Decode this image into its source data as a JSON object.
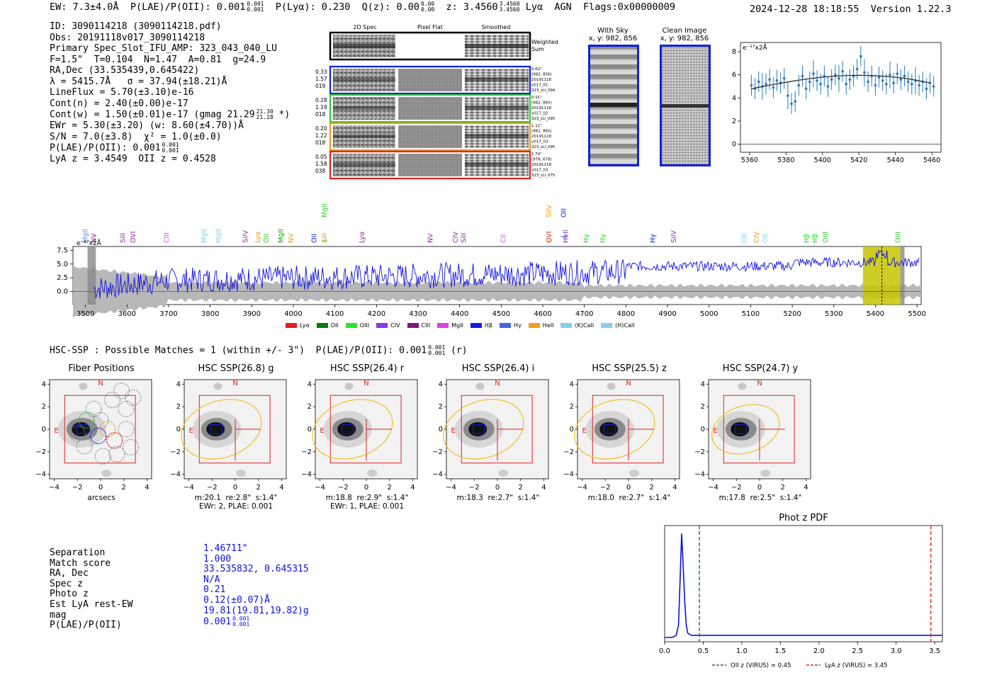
{
  "header": {
    "line": "EW: 7.3±4.0Å  P(LAE)/P(OII): 0.001 0.001  P(Lyα): 0.230  Q(z): 0.00 0.00  z: 3.4560 3.4560 Lyα  AGN  Flags:0x00000009",
    "ew": "EW: 7.3±4.0Å",
    "plae": "P(LAE)/P(OII): 0.001",
    "plae_hi": "0.001",
    "plae_lo": "0.001",
    "plya": "P(Lyα): 0.230",
    "qz": "Q(z): 0.00",
    "qz_hi": "0.00",
    "qz_lo": "0.00",
    "z": "z: 3.4560",
    "z_hi": "3.4560",
    "z_lo": "3.4560",
    "line_id": "Lyα",
    "agn": "AGN",
    "flags": "Flags:0x00000009",
    "date": "2024-12-28 18:18:55",
    "version": "Version 1.22.3"
  },
  "info": {
    "id": "ID: 3090114218 (3090114218.pdf)",
    "obs": "Obs: 20191118v017_3090114218",
    "primary": "Primary Spec_Slot_IFU_AMP: 323_043_040_LU",
    "fparams": "F=1.5\"  T=0.104  N=1.47  A=0.81  g=24.9",
    "radec": "RA,Dec (33.535439,0.645422)",
    "lambda": "λ = 5415.7Å   σ = 37.94(±18.21)Å",
    "lineflux": "LineFlux = 5.70(±3.10)e-16",
    "contn": "Cont(n) = 2.40(±0.00)e-17",
    "contw": "Cont(w) = 1.50(±0.01)e-17 (gmag 21.29",
    "contw_hi": "21.30",
    "contw_lo": "21.28",
    "contw_end": "*)",
    "ewr": "EWr = 5.30(±3.20) (w: 8.60(±4.70))Å",
    "sn": "S/N = 7.0(±3.8)  χ² = 1.0(±0.0)",
    "plae": "P(LAE)/P(OII): 0.001",
    "plae_hi": "0.001",
    "plae_lo": "0.001",
    "lyaz": "LyA z = 3.4549  OII z = 0.4528"
  },
  "cutouts": {
    "headers": [
      "2D Spec",
      "Pixel Flat",
      "Smoothed"
    ],
    "weighted_label_1": "Weighted",
    "weighted_label_2": "Sum",
    "rows": [
      {
        "left": [
          "0.33",
          "1.57",
          "019"
        ],
        "right": [
          "0.62\"",
          "(982, 856)",
          "20191118",
          "v017_01",
          "323_LU_094"
        ],
        "color": "#1020e0"
      },
      {
        "left": [
          "0.28",
          "1.19",
          "018"
        ],
        "right": [
          "0.91\"",
          "(982, 865)",
          "20191118",
          "v017_02",
          "323_LU_095"
        ],
        "color": "#30cc30"
      },
      {
        "left": [
          "0.20",
          "1.22",
          "018"
        ],
        "right": [
          "1.11\"",
          "(982, 865)",
          "20191118",
          "v017_03",
          "323_LU_095"
        ],
        "color": "#e89a20"
      },
      {
        "left": [
          "0.05",
          "1.58",
          "038"
        ],
        "right": [
          "1.74\"",
          "(978, 678)",
          "20191118",
          "v017_03",
          "323_LU_075"
        ],
        "color": "#e02020"
      }
    ],
    "with_sky_title": "With Sky",
    "with_sky_coords": "x, y: 982, 856",
    "clean_title": "Clean Image",
    "clean_coords": "x, y: 982, 856"
  },
  "zoom_plot": {
    "ylabel": "e⁻¹⁷x2Å",
    "x_ticks": [
      "5360",
      "5380",
      "5400",
      "5420",
      "5440",
      "5460"
    ],
    "y_ticks": [
      "0",
      "2",
      "4",
      "6",
      "8"
    ]
  },
  "spectrum": {
    "ylabel": "e⁻¹⁷x2Å",
    "x_ticks": [
      "3500",
      "3600",
      "3700",
      "3800",
      "3900",
      "4000",
      "4100",
      "4200",
      "4300",
      "4400",
      "4500",
      "4600",
      "4700",
      "4800",
      "4900",
      "5000",
      "5100",
      "5200",
      "5300",
      "5400",
      "5500"
    ],
    "y_ticks": [
      "7.5",
      "5.0",
      "2.5",
      "0.0"
    ],
    "line_labels": [
      {
        "t": "MgII",
        "c": "#6688dd",
        "w": 3500
      },
      {
        "t": "NV",
        "c": "#7a1a7a",
        "w": 3520
      },
      {
        "t": "SiII",
        "c": "#8a2a9a",
        "w": 3590
      },
      {
        "t": "OVI",
        "c": "#8a2a9a",
        "w": 3615
      },
      {
        "t": "CIII",
        "c": "#e040e0",
        "w": 3695
      },
      {
        "t": "MgII",
        "c": "#88ccee",
        "w": 3785
      },
      {
        "t": "MgII",
        "c": "#88ccee",
        "w": 3820
      },
      {
        "t": "SiIV",
        "c": "#8a2a9a",
        "w": 3885
      },
      {
        "t": "Lyα",
        "c": "#e89a20",
        "w": 3915
      },
      {
        "t": "OII",
        "c": "#30cc30",
        "w": 3935
      },
      {
        "t": "MgII",
        "c": "#10a010",
        "w": 3970
      },
      {
        "t": "NV",
        "c": "#e89a20",
        "w": 3995
      },
      {
        "t": "OII",
        "c": "#1020e0",
        "w": 4050
      },
      {
        "t": "SiII",
        "c": "#e89a20",
        "w": 4075
      },
      {
        "t": "Lyα",
        "c": "#8a2a9a",
        "w": 4165
      },
      {
        "t": "NV",
        "c": "#8a2a9a",
        "w": 4330
      },
      {
        "t": "CIV",
        "c": "#8a2a9a",
        "w": 4390
      },
      {
        "t": "SiII",
        "c": "#8a2a9a",
        "w": 4410
      },
      {
        "t": "CII",
        "c": "#e040e0",
        "w": 4505
      },
      {
        "t": "OVI",
        "c": "#e02020",
        "w": 4615
      },
      {
        "t": "HeII",
        "c": "#8a2a9a",
        "w": 4655
      },
      {
        "t": "Hγ",
        "c": "#30cc30",
        "w": 4705
      },
      {
        "t": "Hγ",
        "c": "#30cc30",
        "w": 4745
      },
      {
        "t": "Hγ",
        "c": "#1020e0",
        "w": 4865
      },
      {
        "t": "SiIV",
        "c": "#8a2a9a",
        "w": 4915
      },
      {
        "t": "OII",
        "c": "#88ccee",
        "w": 5085
      },
      {
        "t": "CIV",
        "c": "#e89a20",
        "w": 5115
      },
      {
        "t": "OII",
        "c": "#88ccee",
        "w": 5135
      },
      {
        "t": "Hβ",
        "c": "#30cc30",
        "w": 5235
      },
      {
        "t": "Hβ",
        "c": "#30cc30",
        "w": 5255
      },
      {
        "t": "OIII",
        "c": "#30cc30",
        "w": 5280
      },
      {
        "t": "OIII",
        "c": "#30cc30",
        "w": 5455
      }
    ],
    "upper_labels": [
      {
        "t": "MgII",
        "c": "#30cc30",
        "w": 4075
      },
      {
        "t": "SiIV",
        "c": "#e89a20",
        "w": 4615
      },
      {
        "t": "OII",
        "c": "#1020e0",
        "w": 4650
      }
    ],
    "legend": [
      {
        "t": "Lyα",
        "c": "#e02020"
      },
      {
        "t": "OII",
        "c": "#0a7a0a"
      },
      {
        "t": "OIII",
        "c": "#30e030"
      },
      {
        "t": "CIV",
        "c": "#8a3ae0"
      },
      {
        "t": "CIII",
        "c": "#7a1a7a"
      },
      {
        "t": "MgII",
        "c": "#e040e0"
      },
      {
        "t": "Hβ",
        "c": "#1020e0"
      },
      {
        "t": "Hγ",
        "c": "#4466dd"
      },
      {
        "t": "HeII",
        "c": "#f0a020"
      },
      {
        "t": "(K)CaII",
        "c": "#88ccee"
      },
      {
        "t": "(H)CaII",
        "c": "#88ccee"
      }
    ]
  },
  "hsc": {
    "summary": "HSC-SSP : Possible Matches = 1 (within +/- 3\")  P(LAE)/P(OII): 0.001",
    "summary_hi": "0.001",
    "summary_lo": "0.001",
    "summary_end": "(r)",
    "panels": [
      {
        "title": "Fiber Positions",
        "cap1": "arcsecs",
        "cap2": ""
      },
      {
        "title": "HSC SSP(26.8) g",
        "cap1": "m:20.1  re:2.8\"  s:1.4\"",
        "cap2": "EWr: 2, PLAE: 0.001"
      },
      {
        "title": "HSC SSP(26.4) r",
        "cap1": "m:18.8  re:2.9\"  s:1.4\"",
        "cap2": "EWr: 1, PLAE: 0.001"
      },
      {
        "title": "HSC SSP(26.4) i",
        "cap1": "m:18.3  re:2.7\"  s:1.4\"",
        "cap2": ""
      },
      {
        "title": "HSC SSP(25.5) z",
        "cap1": "m:18.0  re:2.7\"  s:1.4\"",
        "cap2": ""
      },
      {
        "title": "HSC SSP(24.7) y",
        "cap1": "m:17.8  re:2.5\"  s:1.4\"",
        "cap2": ""
      }
    ],
    "axis_ticks": [
      "−4",
      "−2",
      "0",
      "2",
      "4"
    ],
    "y_ticks": [
      "4",
      "2",
      "0",
      "−2",
      "−4"
    ],
    "north": "N",
    "east": "E"
  },
  "match": {
    "labels": [
      "Separation",
      "Match score",
      "RA, Dec",
      "Spec z",
      "Photo z",
      "Est LyA rest-EW",
      "mag",
      "P(LAE)/P(OII)"
    ],
    "values": [
      "1.46711\"",
      "1.000",
      "33.535832, 0.645315",
      "N/A",
      "0.21",
      "0.12(±0.07)Å",
      "19.81(19.81,19.82)g",
      "0.001"
    ],
    "plae_hi": "0.001",
    "plae_lo": "0.001"
  },
  "photz": {
    "title": "Phot z PDF",
    "x_ticks": [
      "0.0",
      "0.5",
      "1.0",
      "1.5",
      "2.0",
      "2.5",
      "3.0",
      "3.5"
    ],
    "legend_oii": "OII z (VIRUS) = 0.45",
    "legend_lya": "LyA z (VIRUS) = 3.45"
  },
  "chart_data": [
    {
      "type": "scatter",
      "title": "",
      "ylabel": "e⁻¹⁷x2Å",
      "xlim": [
        5355,
        5465
      ],
      "ylim": [
        -0.7,
        8.8
      ],
      "x": [
        5361,
        5363,
        5365,
        5367,
        5369,
        5371,
        5373,
        5375,
        5377,
        5379,
        5381,
        5383,
        5385,
        5387,
        5389,
        5391,
        5393,
        5395,
        5397,
        5399,
        5401,
        5403,
        5405,
        5407,
        5409,
        5411,
        5413,
        5415,
        5417,
        5419,
        5421,
        5423,
        5425,
        5427,
        5429,
        5431,
        5433,
        5435,
        5437,
        5439,
        5441,
        5443,
        5445,
        5447,
        5449,
        5451,
        5453,
        5455,
        5457,
        5459,
        5461
      ],
      "y": [
        5.1,
        4.8,
        5.4,
        5.0,
        5.2,
        5.6,
        4.9,
        5.5,
        5.3,
        5.7,
        4.2,
        3.5,
        3.7,
        5.1,
        5.9,
        4.8,
        5.4,
        6.1,
        5.5,
        5.2,
        5.9,
        5.0,
        5.6,
        6.0,
        5.7,
        6.3,
        5.2,
        5.6,
        5.9,
        6.5,
        7.6,
        6.2,
        5.4,
        5.9,
        5.1,
        5.8,
        5.5,
        5.2,
        6.0,
        5.3,
        6.1,
        5.6,
        5.9,
        5.4,
        5.2,
        5.5,
        5.1,
        5.4,
        4.8,
        5.3,
        5.0
      ],
      "err": 0.9,
      "fit_y": [
        4.8,
        4.95,
        5.1,
        5.24,
        5.38,
        5.5,
        5.62,
        5.72,
        5.8,
        5.87,
        5.92,
        5.95,
        5.96,
        5.95,
        5.92,
        5.87,
        5.8,
        5.72,
        5.6,
        5.45,
        5.3
      ]
    },
    {
      "type": "line",
      "title": "",
      "xlabel": "",
      "ylabel": "e⁻¹⁷x2Å",
      "xlim": [
        3470,
        5510
      ],
      "ylim": [
        -2.4,
        8.2
      ],
      "highlight_range": [
        5370,
        5460
      ],
      "line_center": 5415.7
    },
    {
      "type": "line",
      "title": "Phot z PDF",
      "xlim": [
        0.0,
        3.6
      ],
      "ylim": [
        0,
        1.05
      ],
      "x": [
        0.0,
        0.1,
        0.15,
        0.18,
        0.2,
        0.22,
        0.24,
        0.26,
        0.28,
        0.3,
        0.35,
        0.5,
        1.0,
        2.0,
        3.0,
        3.6
      ],
      "y": [
        0.0,
        0.0,
        0.02,
        0.12,
        0.55,
        1.0,
        0.7,
        0.35,
        0.12,
        0.04,
        0.02,
        0.02,
        0.02,
        0.02,
        0.02,
        0.02
      ],
      "vlines": [
        {
          "x": 0.45,
          "label": "OII z (VIRUS) = 0.45",
          "color": "#108010"
        },
        {
          "x": 3.45,
          "label": "LyA z (VIRUS) = 3.45",
          "color": "#e02020"
        }
      ]
    }
  ]
}
